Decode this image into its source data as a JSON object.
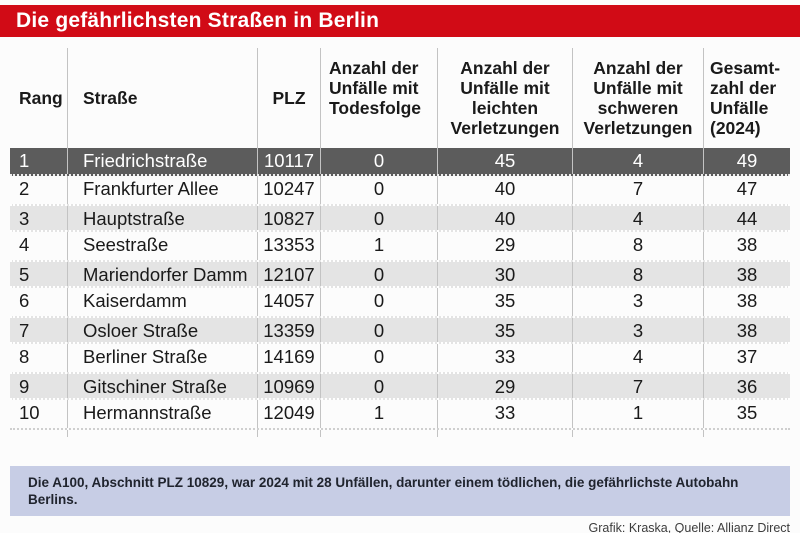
{
  "colors": {
    "accent_red": "#d10b16",
    "highlight_row": "#5c5c5c",
    "stripe_row": "#e4e4e4",
    "note_bg": "#c7cde5"
  },
  "chart_data": {
    "type": "table",
    "title": "Die gefährlichsten Straßen in Berlin",
    "columns": [
      {
        "key": "rang",
        "label": "Rang"
      },
      {
        "key": "strasse",
        "label": "Straße"
      },
      {
        "key": "plz",
        "label": "PLZ"
      },
      {
        "key": "todesfolge",
        "label": "Anzahl der\nUnfälle mit\nTodesfolge"
      },
      {
        "key": "leicht",
        "label": "Anzahl der\nUnfälle mit\nleichten\nVerletzungen"
      },
      {
        "key": "schwer",
        "label": "Anzahl der\nUnfälle mit\nschweren\nVerletzungen"
      },
      {
        "key": "gesamt",
        "label": "Gesamt-\nzahl der\nUnfälle\n(2024)"
      }
    ],
    "rows": [
      {
        "rang": "1",
        "strasse": "Friedrichstraße",
        "plz": "10117",
        "todesfolge": "0",
        "leicht": "45",
        "schwer": "4",
        "gesamt": "49"
      },
      {
        "rang": "2",
        "strasse": "Frankfurter Allee",
        "plz": "10247",
        "todesfolge": "0",
        "leicht": "40",
        "schwer": "7",
        "gesamt": "47"
      },
      {
        "rang": "3",
        "strasse": "Hauptstraße",
        "plz": "10827",
        "todesfolge": "0",
        "leicht": "40",
        "schwer": "4",
        "gesamt": "44"
      },
      {
        "rang": "4",
        "strasse": "Seestraße",
        "plz": "13353",
        "todesfolge": "1",
        "leicht": "29",
        "schwer": "8",
        "gesamt": "38"
      },
      {
        "rang": "5",
        "strasse": "Mariendorfer Damm",
        "plz": "12107",
        "todesfolge": "0",
        "leicht": "30",
        "schwer": "8",
        "gesamt": "38"
      },
      {
        "rang": "6",
        "strasse": "Kaiserdamm",
        "plz": "14057",
        "todesfolge": "0",
        "leicht": "35",
        "schwer": "3",
        "gesamt": "38"
      },
      {
        "rang": "7",
        "strasse": "Osloer Straße",
        "plz": "13359",
        "todesfolge": "0",
        "leicht": "35",
        "schwer": "3",
        "gesamt": "38"
      },
      {
        "rang": "8",
        "strasse": "Berliner Straße",
        "plz": "14169",
        "todesfolge": "0",
        "leicht": "33",
        "schwer": "4",
        "gesamt": "37"
      },
      {
        "rang": "9",
        "strasse": "Gitschiner Straße",
        "plz": "10969",
        "todesfolge": "0",
        "leicht": "29",
        "schwer": "7",
        "gesamt": "36"
      },
      {
        "rang": "10",
        "strasse": "Hermannstraße",
        "plz": "12049",
        "todesfolge": "1",
        "leicht": "33",
        "schwer": "1",
        "gesamt": "35"
      }
    ],
    "footnote": "Die A100, Abschnitt PLZ 10829, war 2024 mit 28 Unfällen, darunter einem tödlichen, die gefährlichste Autobahn Berlins.",
    "credit": "Grafik: Kraska, Quelle: Allianz Direct"
  }
}
